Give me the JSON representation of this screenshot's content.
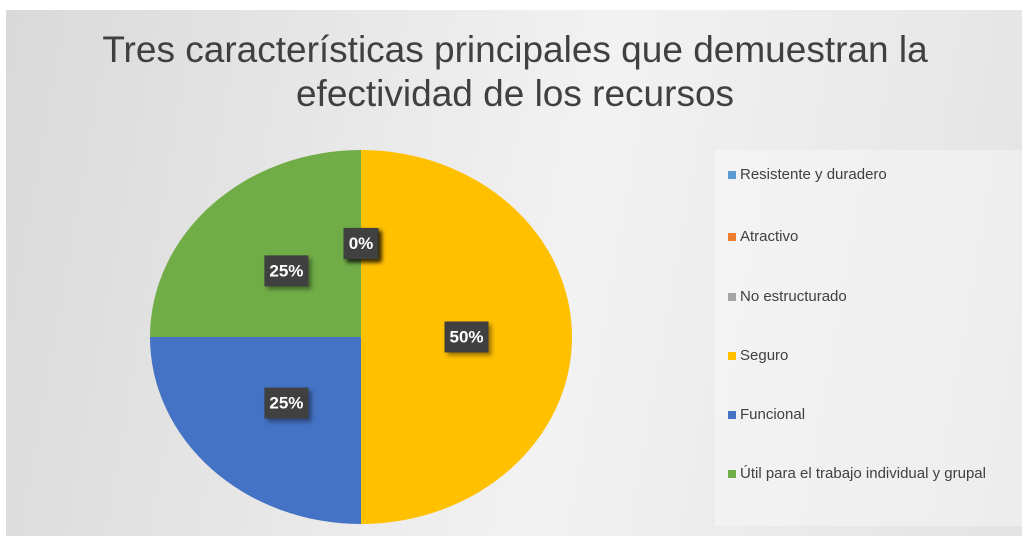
{
  "chart_data": {
    "type": "pie",
    "title": "Tres características principales que demuestran la efectividad de los recursos",
    "categories": [
      "Resistente y duradero",
      "Atractivo",
      "No estructurado",
      "Seguro",
      "Funcional",
      "Útil para el trabajo individual y grupal"
    ],
    "values": [
      0,
      0,
      0,
      50,
      25,
      25
    ],
    "value_labels": [
      "0%",
      "0%",
      "0%",
      "50%",
      "25%",
      "25%"
    ],
    "colors": [
      "#5b9bd5",
      "#ed7d31",
      "#a5a5a5",
      "#ffc000",
      "#4472c4",
      "#70ad47"
    ],
    "legend": "right"
  }
}
